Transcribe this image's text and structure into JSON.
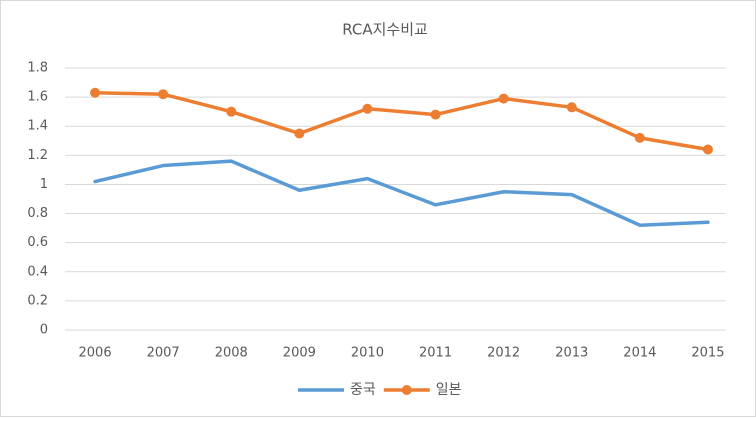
{
  "chart_data": {
    "type": "line",
    "title": "RCA지수비교",
    "categories": [
      "2006",
      "2007",
      "2008",
      "2009",
      "2010",
      "2011",
      "2012",
      "2013",
      "2014",
      "2015"
    ],
    "series": [
      {
        "name": "중국",
        "color": "#5b9bd5",
        "marker": false,
        "values": [
          1.02,
          1.13,
          1.16,
          0.96,
          1.04,
          0.86,
          0.95,
          0.93,
          0.72,
          0.74
        ]
      },
      {
        "name": "일본",
        "color": "#ed7d31",
        "marker": true,
        "values": [
          1.63,
          1.62,
          1.5,
          1.35,
          1.52,
          1.48,
          1.59,
          1.53,
          1.32,
          1.24
        ]
      }
    ],
    "ylim": [
      0,
      1.8
    ],
    "yticks": [
      0,
      0.2,
      0.4,
      0.6,
      0.8,
      1,
      1.2,
      1.4,
      1.6,
      1.8
    ],
    "grid": true,
    "legend": "bottom"
  }
}
